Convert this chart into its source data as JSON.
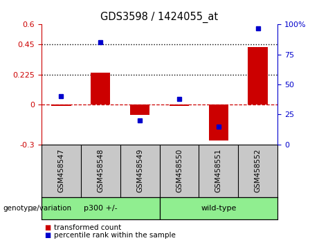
{
  "title": "GDS3598 / 1424055_at",
  "samples": [
    "GSM458547",
    "GSM458548",
    "GSM458549",
    "GSM458550",
    "GSM458551",
    "GSM458552"
  ],
  "red_bars": [
    -0.01,
    0.24,
    -0.08,
    -0.01,
    -0.27,
    0.43
  ],
  "blue_dots_percentile": [
    40,
    85,
    20,
    38,
    15,
    97
  ],
  "ylim_left": [
    -0.3,
    0.6
  ],
  "ylim_right": [
    0,
    100
  ],
  "yticks_left": [
    -0.3,
    0.0,
    0.225,
    0.45,
    0.6
  ],
  "yticks_right": [
    0,
    25,
    50,
    75,
    100
  ],
  "ytick_labels_left": [
    "-0.3",
    "0",
    "0.225",
    "0.45",
    "0.6"
  ],
  "ytick_labels_right": [
    "0",
    "25",
    "50",
    "75",
    "100%"
  ],
  "hlines": [
    0.225,
    0.45
  ],
  "zero_line": 0.0,
  "group_labels": [
    "p300 +/-",
    "wild-type"
  ],
  "group_label_header": "genotype/variation",
  "legend_red": "transformed count",
  "legend_blue": "percentile rank within the sample",
  "bar_color": "#cc0000",
  "dot_color": "#0000cc",
  "bar_width": 0.5,
  "background_plot": "#ffffff",
  "tick_label_color_left": "#cc0000",
  "tick_label_color_right": "#0000cc",
  "label_bg": "#c8c8c8",
  "group_color": "#90ee90"
}
